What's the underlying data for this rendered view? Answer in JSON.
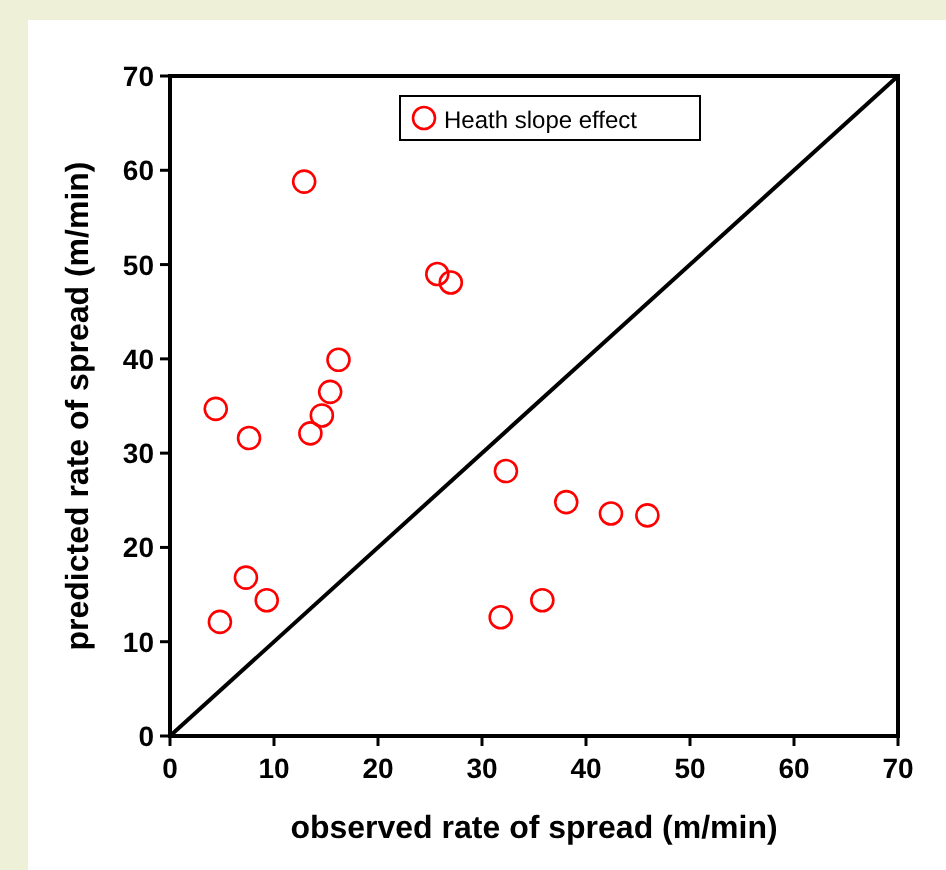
{
  "chart_data": {
    "type": "scatter",
    "xlabel": "observed rate of spread (m/min)",
    "ylabel": "predicted rate of spread (m/min)",
    "xlim": [
      0,
      70
    ],
    "ylim": [
      0,
      70
    ],
    "xticks": [
      0,
      10,
      20,
      30,
      40,
      50,
      60,
      70
    ],
    "yticks": [
      0,
      10,
      20,
      30,
      40,
      50,
      60,
      70
    ],
    "grid": false,
    "legend": "top",
    "marker": "circle",
    "series": [
      {
        "name": "Heath slope effect",
        "color": "#ff0000",
        "x": [
          4.4,
          7.6,
          13.5,
          14.6,
          15.4,
          7.3,
          9.3,
          4.8,
          16.2,
          12.9,
          25.7,
          27.0,
          32.3,
          38.1,
          42.4,
          45.9,
          35.8,
          31.8
        ],
        "values": [
          34.7,
          31.6,
          32.1,
          34.0,
          36.5,
          16.8,
          14.4,
          12.1,
          39.9,
          58.8,
          49.0,
          48.1,
          28.1,
          24.8,
          23.6,
          23.4,
          14.4,
          12.6
        ]
      },
      {
        "type": "line",
        "color": "#000000",
        "line_style": "solid",
        "marker": "none",
        "x": [
          0,
          70
        ],
        "values": [
          0,
          70
        ]
      }
    ]
  }
}
